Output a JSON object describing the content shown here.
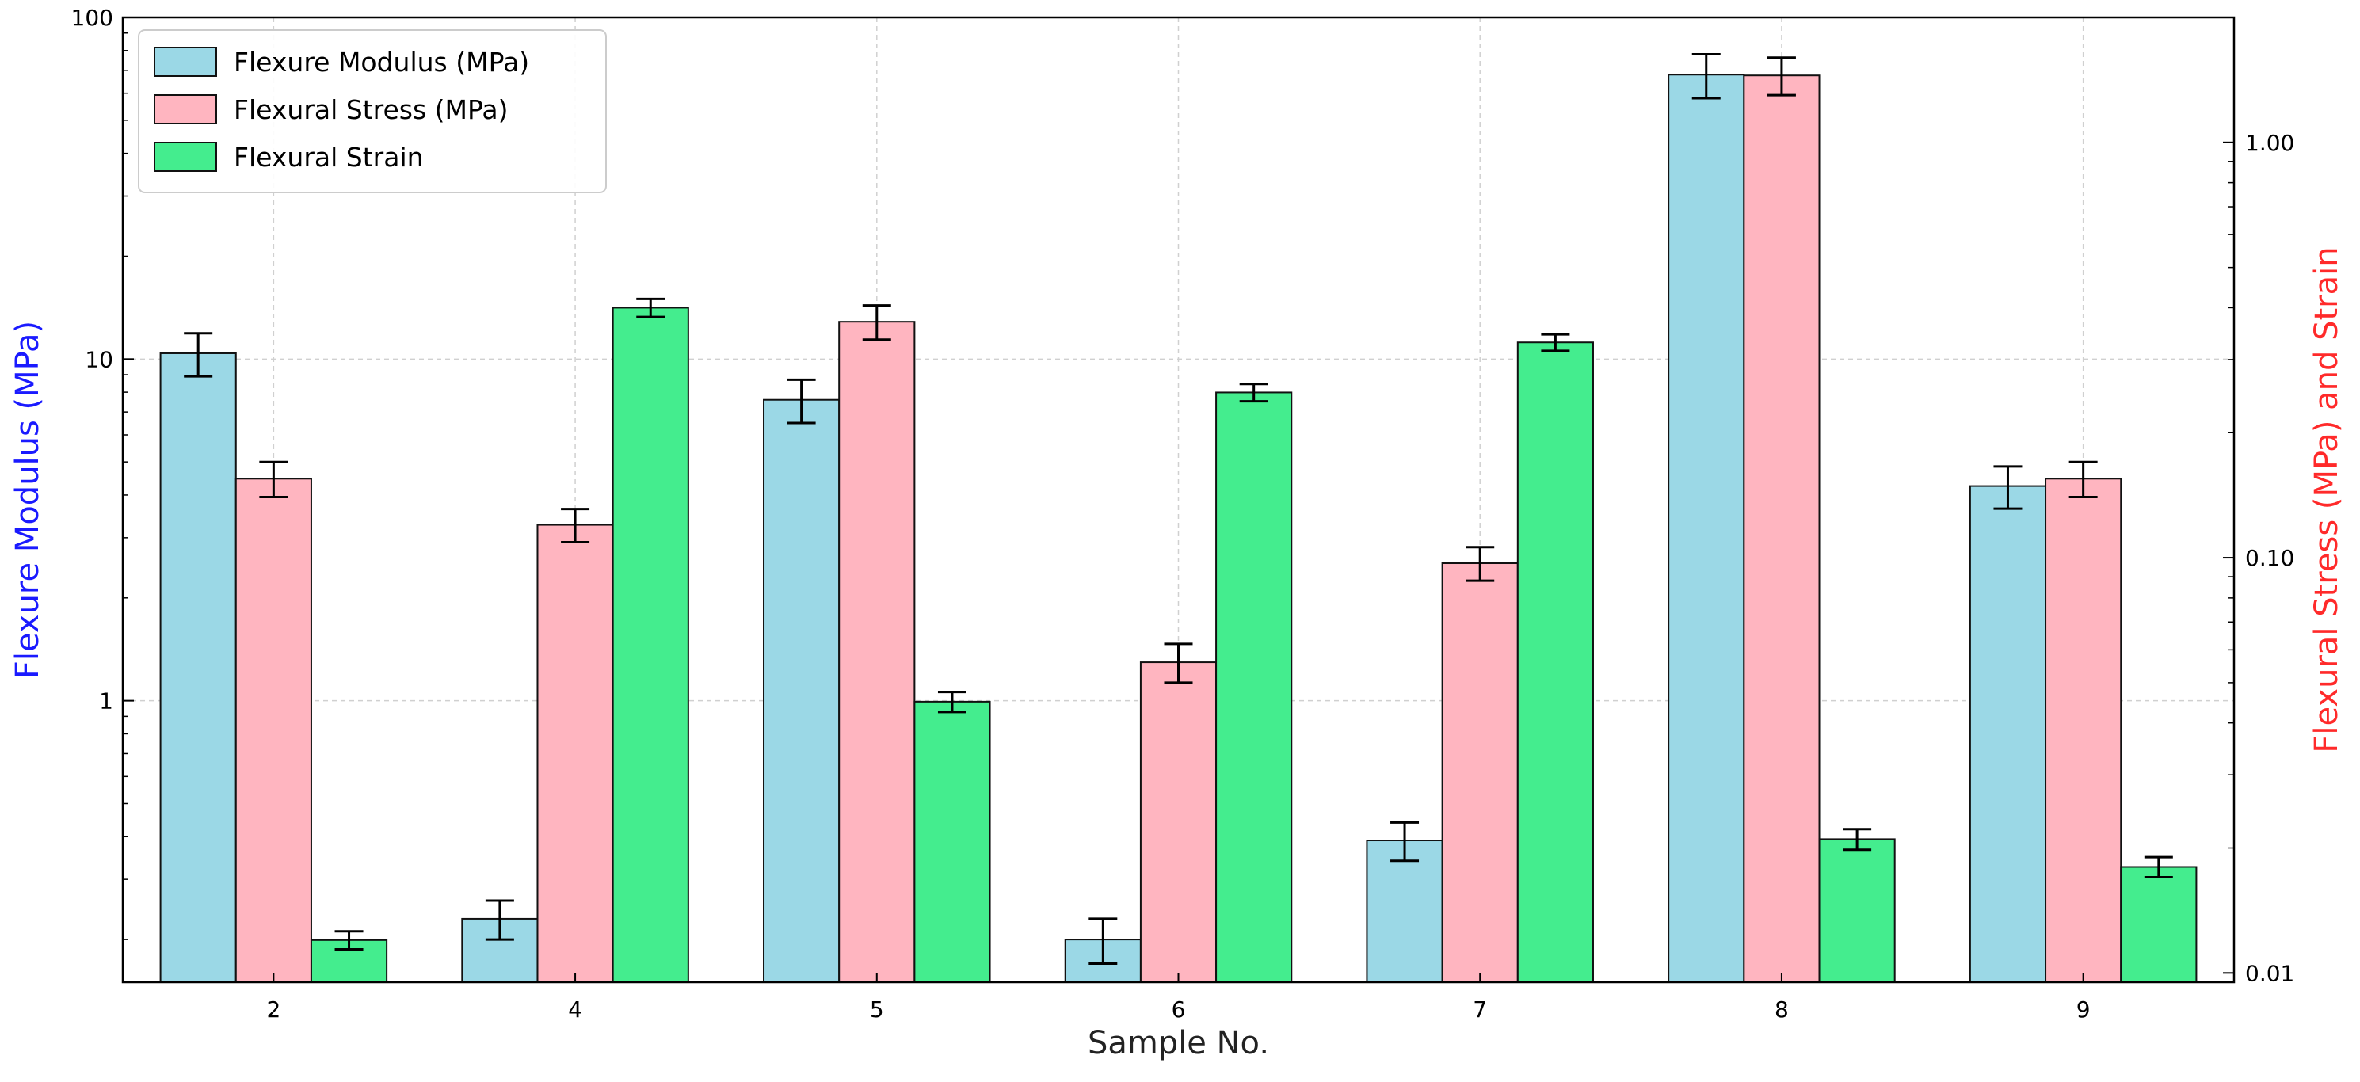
{
  "chart_data": {
    "type": "bar",
    "title": "",
    "xlabel": "Sample No.",
    "ylabel_left": "Flexure Modulus (MPa)",
    "ylabel_right": "Flexural Stress (MPa) and Strain",
    "y_scale": "log",
    "ylim_left": [
      0.15,
      100
    ],
    "ylim_right": [
      0.0095,
      2.0
    ],
    "left_ticks": [
      {
        "value": 1,
        "label": "1"
      },
      {
        "value": 10,
        "label": "10"
      },
      {
        "value": 100,
        "label": "100"
      }
    ],
    "right_ticks": [
      {
        "value": 0.01,
        "label": "0.01"
      },
      {
        "value": 0.1,
        "label": "0.10"
      },
      {
        "value": 1.0,
        "label": "1.00"
      }
    ],
    "grid": true,
    "legend_position": "upper-left",
    "categories": [
      "2",
      "4",
      "5",
      "6",
      "7",
      "8",
      "9"
    ],
    "series": [
      {
        "name": "Flexure Modulus (MPa)",
        "axis": "left",
        "color": "#9bd8e6",
        "values": [
          10.4,
          0.23,
          7.6,
          0.2,
          0.39,
          68,
          4.25
        ],
        "errors": [
          1.5,
          0.03,
          1.1,
          0.03,
          0.05,
          10,
          0.6
        ]
      },
      {
        "name": "Flexural Stress (MPa)",
        "axis": "right",
        "color": "#ffb5c0",
        "values": [
          0.155,
          0.12,
          0.37,
          0.056,
          0.097,
          1.45,
          0.155
        ],
        "errors": [
          0.015,
          0.011,
          0.035,
          0.006,
          0.009,
          0.15,
          0.015
        ]
      },
      {
        "name": "Flexural Strain",
        "axis": "right",
        "color": "#44ed8e",
        "values": [
          0.012,
          0.4,
          0.045,
          0.25,
          0.33,
          0.021,
          0.018
        ],
        "errors": [
          0.0006,
          0.02,
          0.0025,
          0.012,
          0.015,
          0.0012,
          0.001
        ]
      }
    ],
    "colors": {
      "left_axis_label": "#1a1aff",
      "right_axis_label": "#ff2a2a",
      "bar_edge": "#111111",
      "grid": "#d0d0d0"
    }
  }
}
